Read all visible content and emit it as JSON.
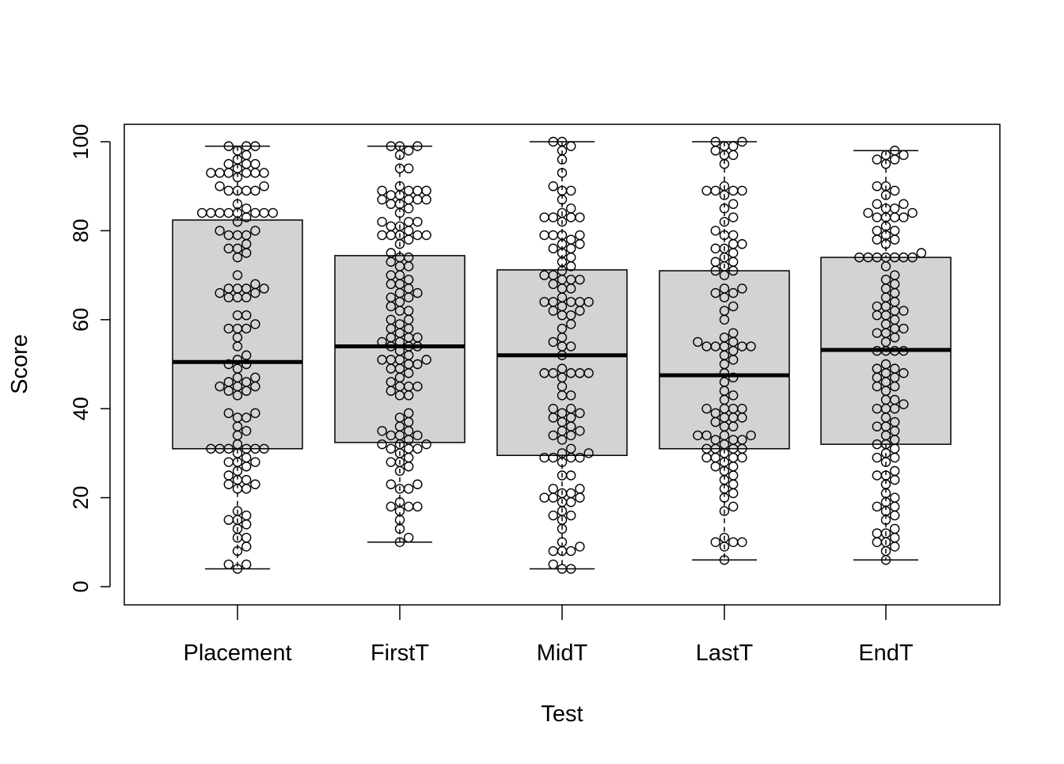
{
  "chart_data": {
    "type": "boxplot",
    "title": "",
    "xlabel": "Test",
    "ylabel": "Score",
    "ylim": [
      0,
      100
    ],
    "yticks": [
      0,
      20,
      40,
      60,
      80,
      100
    ],
    "ytick_labels": [
      "0",
      "20",
      "40",
      "60",
      "80",
      "100"
    ],
    "categories": [
      "Placement",
      "FirstT",
      "MidT",
      "LastT",
      "EndT"
    ],
    "box_fill": "#d3d3d3",
    "boxes": [
      {
        "name": "Placement",
        "min": 4,
        "q1": 31,
        "median": 50.5,
        "q3": 82.4,
        "max": 99
      },
      {
        "name": "FirstT",
        "min": 10,
        "q1": 32.4,
        "median": 54,
        "q3": 74.4,
        "max": 99
      },
      {
        "name": "MidT",
        "min": 4,
        "q1": 29.5,
        "median": 52,
        "q3": 71.2,
        "max": 100
      },
      {
        "name": "LastT",
        "min": 6,
        "q1": 31,
        "median": 47.5,
        "q3": 71,
        "max": 100
      },
      {
        "name": "EndT",
        "min": 6,
        "q1": 32,
        "median": 53.2,
        "q3": 74,
        "max": 98
      }
    ],
    "points": {
      "Placement": [
        99,
        99,
        99,
        98,
        97,
        96,
        95,
        95,
        95,
        94,
        93,
        93,
        93,
        93,
        93,
        93,
        92,
        90,
        90,
        89,
        89,
        89,
        89,
        86,
        85,
        84,
        84,
        84,
        84,
        84,
        84,
        84,
        84,
        83,
        82,
        80,
        80,
        79,
        79,
        79,
        77,
        76,
        76,
        75,
        74,
        70,
        68,
        67,
        67,
        67,
        67,
        66,
        66,
        65,
        65,
        65,
        61,
        61,
        59,
        58,
        58,
        58,
        56,
        54,
        52,
        51,
        50,
        50,
        49,
        47,
        47,
        46,
        46,
        45,
        45,
        45,
        44,
        44,
        43,
        39,
        39,
        38,
        38,
        36,
        35,
        34,
        32,
        31,
        31,
        31,
        31,
        31,
        31,
        30,
        29,
        28,
        28,
        28,
        27,
        26,
        25,
        24,
        24,
        23,
        23,
        22,
        22,
        17,
        16,
        15,
        15,
        14,
        13,
        11,
        11,
        9,
        8,
        5,
        5,
        4
      ],
      "FirstT": [
        99,
        99,
        99,
        98,
        97,
        94,
        94,
        90,
        89,
        89,
        89,
        89,
        88,
        88,
        87,
        87,
        87,
        87,
        86,
        86,
        85,
        84,
        82,
        82,
        82,
        81,
        81,
        80,
        79,
        79,
        79,
        79,
        79,
        78,
        77,
        75,
        74,
        74,
        73,
        72,
        72,
        70,
        70,
        69,
        68,
        68,
        67,
        66,
        66,
        65,
        65,
        64,
        63,
        62,
        62,
        60,
        60,
        59,
        58,
        58,
        57,
        56,
        56,
        56,
        55,
        55,
        54,
        54,
        54,
        53,
        52,
        51,
        51,
        51,
        51,
        50,
        50,
        49,
        49,
        48,
        47,
        46,
        45,
        45,
        45,
        44,
        43,
        43,
        39,
        38,
        37,
        36,
        35,
        35,
        34,
        34,
        34,
        33,
        32,
        32,
        32,
        31,
        31,
        31,
        30,
        29,
        28,
        28,
        27,
        26,
        23,
        23,
        22,
        22,
        19,
        18,
        18,
        18,
        17,
        15,
        13,
        11,
        10
      ],
      "MidT": [
        100,
        100,
        99,
        98,
        96,
        93,
        90,
        89,
        89,
        87,
        85,
        84,
        83,
        83,
        83,
        83,
        82,
        79,
        79,
        79,
        79,
        78,
        77,
        77,
        76,
        76,
        75,
        74,
        73,
        72,
        71,
        70,
        70,
        69,
        69,
        69,
        68,
        67,
        67,
        65,
        64,
        64,
        64,
        64,
        64,
        63,
        62,
        62,
        61,
        61,
        59,
        58,
        56,
        55,
        54,
        54,
        52,
        49,
        48,
        48,
        48,
        48,
        48,
        47,
        45,
        43,
        43,
        40,
        40,
        39,
        39,
        38,
        38,
        37,
        36,
        35,
        35,
        34,
        34,
        33,
        31,
        30,
        30,
        29,
        29,
        29,
        29,
        28,
        25,
        25,
        22,
        22,
        21,
        21,
        20,
        20,
        20,
        19,
        19,
        17,
        16,
        16,
        15,
        13,
        10,
        9,
        8,
        8,
        8,
        5,
        4,
        4
      ],
      "LastT": [
        100,
        100,
        99,
        99,
        98,
        97,
        97,
        95,
        90,
        89,
        89,
        89,
        89,
        88,
        86,
        85,
        83,
        82,
        80,
        79,
        79,
        77,
        77,
        76,
        76,
        75,
        74,
        73,
        73,
        72,
        71,
        71,
        70,
        67,
        67,
        66,
        66,
        65,
        63,
        62,
        60,
        57,
        56,
        55,
        55,
        54,
        54,
        54,
        54,
        54,
        53,
        52,
        51,
        50,
        48,
        47,
        46,
        44,
        43,
        42,
        40,
        40,
        40,
        40,
        39,
        38,
        38,
        38,
        37,
        36,
        36,
        34,
        34,
        34,
        34,
        33,
        33,
        33,
        32,
        31,
        31,
        31,
        31,
        30,
        29,
        29,
        29,
        29,
        28,
        27,
        27,
        26,
        25,
        24,
        23,
        22,
        21,
        20,
        18,
        17,
        11,
        10,
        10,
        10,
        9,
        6
      ],
      "EndT": [
        98,
        97,
        97,
        96,
        96,
        95,
        90,
        90,
        89,
        88,
        86,
        86,
        85,
        85,
        84,
        84,
        83,
        83,
        83,
        83,
        81,
        80,
        80,
        79,
        78,
        78,
        77,
        75,
        74,
        74,
        74,
        74,
        74,
        74,
        74,
        72,
        70,
        69,
        68,
        67,
        66,
        65,
        64,
        63,
        63,
        62,
        62,
        61,
        61,
        60,
        59,
        58,
        58,
        57,
        57,
        56,
        55,
        53,
        53,
        53,
        53,
        50,
        49,
        49,
        48,
        48,
        47,
        47,
        46,
        45,
        45,
        44,
        42,
        42,
        41,
        40,
        40,
        40,
        38,
        37,
        36,
        36,
        35,
        34,
        33,
        32,
        32,
        31,
        30,
        29,
        29,
        28,
        26,
        25,
        25,
        24,
        23,
        21,
        20,
        19,
        18,
        18,
        17,
        16,
        15,
        13,
        12,
        12,
        11,
        10,
        10,
        9,
        8,
        6
      ]
    }
  }
}
